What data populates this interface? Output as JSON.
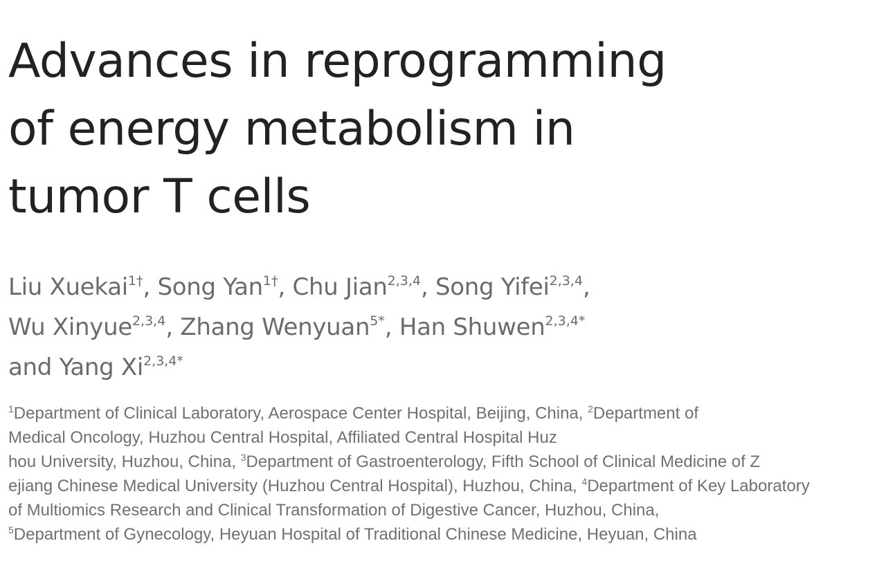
{
  "title": {
    "lines": [
      "Advances in reprogramming",
      "of energy metabolism in",
      "tumor T cells"
    ]
  },
  "authors": [
    {
      "name": "Liu Xuekai",
      "sup": "1†",
      "sep": ", "
    },
    {
      "name": "Song Yan",
      "sup": "1†",
      "sep": ", "
    },
    {
      "name": "Chu Jian",
      "sup": "2,3,4",
      "sep": ", "
    },
    {
      "name": "Song Yifei",
      "sup": "2,3,4",
      "sep": ","
    },
    {
      "name": "Wu Xinyue",
      "sup": "2,3,4",
      "sep": ", "
    },
    {
      "name": "Zhang Wenyuan",
      "sup": "5*",
      "sep": ", "
    },
    {
      "name": "Han Shuwen",
      "sup": "2,3,4*",
      "sep": ""
    },
    {
      "name": "and Yang Xi",
      "sup": "2,3,4*",
      "sep": ""
    }
  ],
  "affiliations": [
    {
      "sup": "1",
      "text": "Department of Clinical Laboratory, Aerospace Center Hospital, Beijing, China, "
    },
    {
      "sup": "2",
      "text": "Department of Medical Oncology, Huzhou Central Hospital, Affiliated Central Hospital Huzhou University, Huzhou, China, "
    },
    {
      "sup": "3",
      "text": "Department of Gastroenterology, Fifth School of Clinical Medicine of Zhejiang Chinese Medical University (Huzhou Central Hospital), Huzhou, China, "
    },
    {
      "sup": "4",
      "text": "Department of Key Laboratory of Multiomics Research and Clinical Transformation of Digestive Cancer, Huzhou, China, "
    },
    {
      "sup": "5",
      "text": "Department of Gynecology, Heyuan Hospital of Traditional Chinese Medicine, Heyuan, China"
    }
  ]
}
